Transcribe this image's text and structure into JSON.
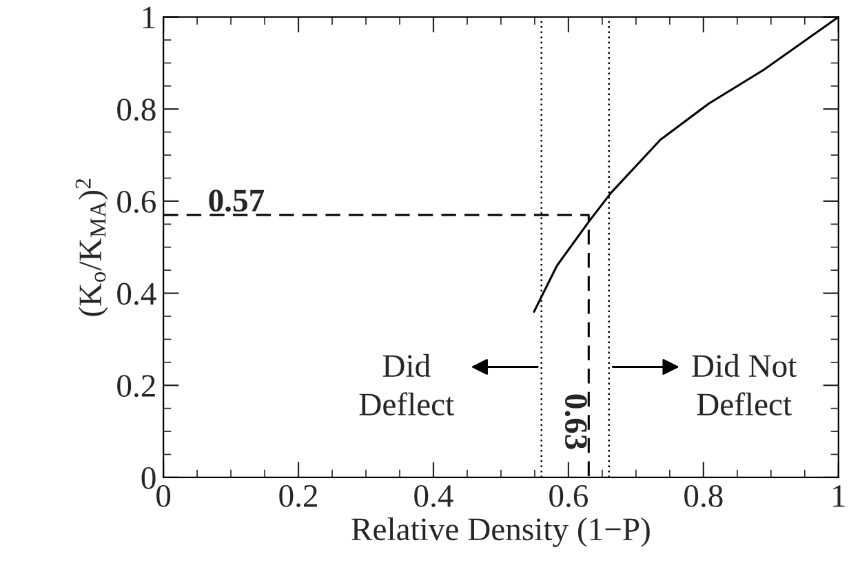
{
  "chart_data": {
    "type": "line",
    "xlabel": "Relative Density (1−P)",
    "ylabel": "(K$_{o}$/K$_{MA}$)$^{2}$",
    "xlim": [
      0,
      1
    ],
    "ylim": [
      0,
      1
    ],
    "xticks": [
      0,
      0.2,
      0.4,
      0.6,
      0.8,
      1
    ],
    "yticks": [
      0,
      0.2,
      0.4,
      0.6,
      0.8,
      1
    ],
    "series": [
      {
        "color": "#000000",
        "line_style": "solid",
        "x": [
          0.549,
          0.583,
          0.631,
          0.663,
          0.736,
          0.808,
          0.889,
          1.0
        ],
        "values": [
          0.36,
          0.46,
          0.557,
          0.618,
          0.733,
          0.812,
          0.885,
          1.0
        ]
      },
      {
        "color": "#000000",
        "line_style": "dashed",
        "x": [
          0,
          0.63,
          0.63
        ],
        "values": [
          0.57,
          0.57,
          0
        ]
      }
    ],
    "ref_lines": [
      {
        "axis": "x",
        "value": 0.56,
        "line_style": "dotted",
        "color": "#000000"
      },
      {
        "axis": "x",
        "value": 0.66,
        "line_style": "dotted",
        "color": "#000000"
      }
    ],
    "annotations": [
      "0.57",
      "0.63",
      "Did\nDeflect",
      "Did Not\nDeflect"
    ]
  }
}
